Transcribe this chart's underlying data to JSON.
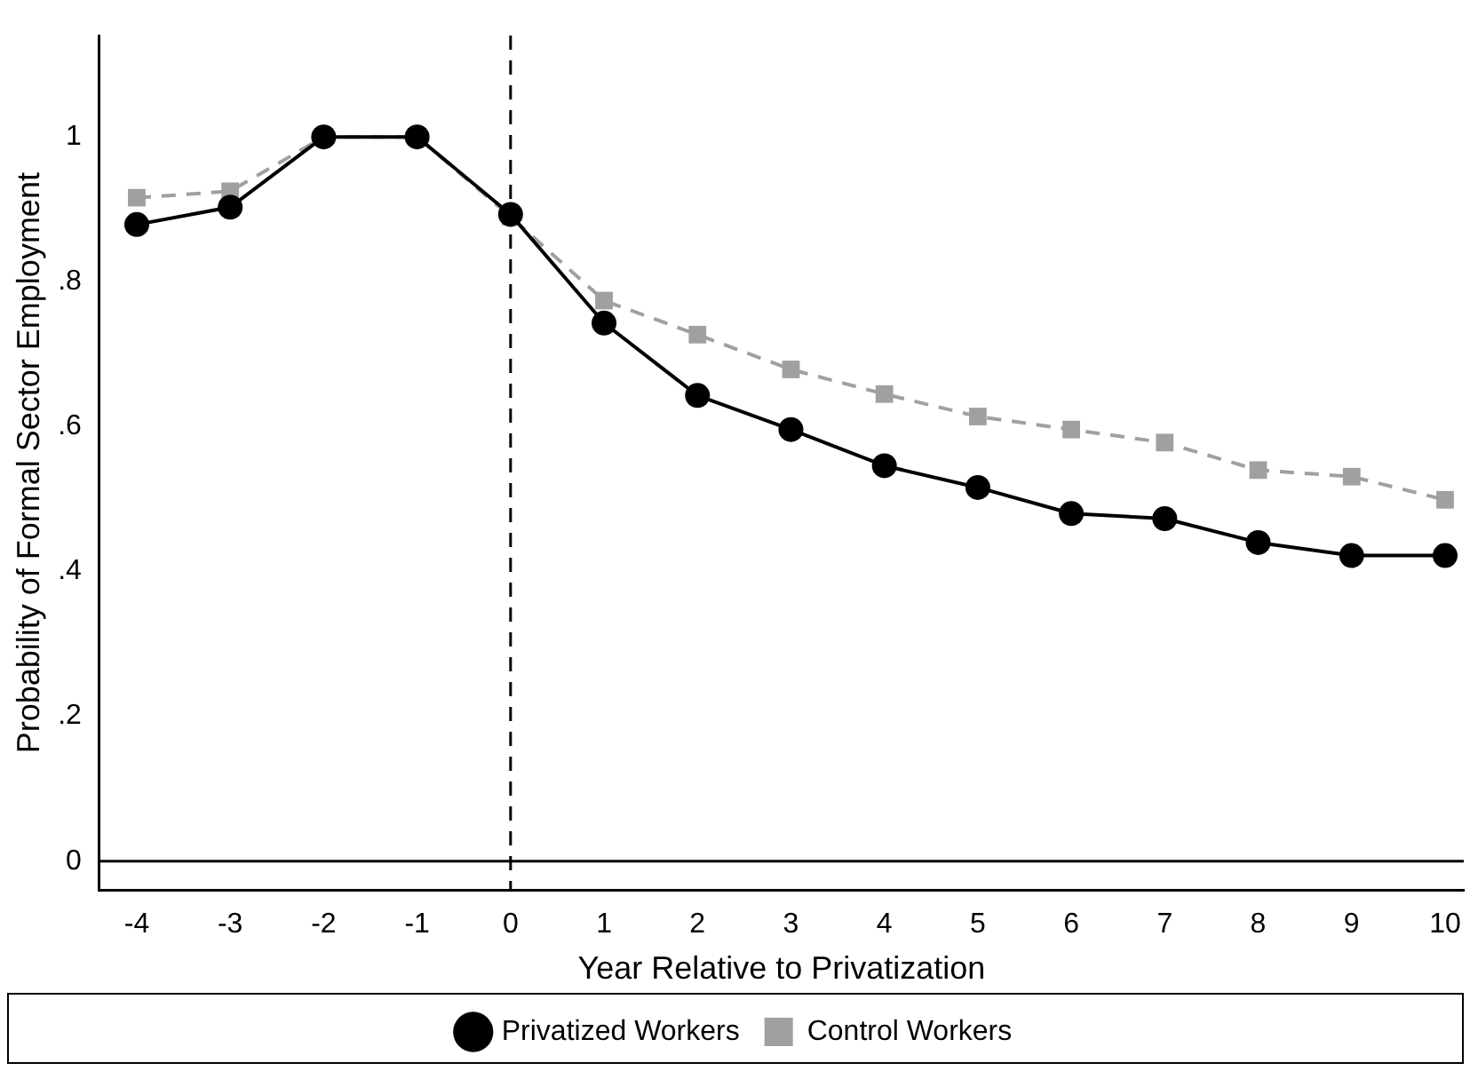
{
  "chart_data": {
    "type": "line",
    "xlabel": "Year Relative to Privatization",
    "ylabel": "Probability of Formal Sector Employment",
    "x": [
      -4,
      -3,
      -2,
      -1,
      0,
      1,
      2,
      3,
      4,
      5,
      6,
      7,
      8,
      9,
      10
    ],
    "series": [
      {
        "name": "Privatized Workers",
        "color": "#000000",
        "marker": "circle",
        "line_style": "solid",
        "values": [
          0.879,
          0.903,
          1,
          1,
          0.893,
          0.743,
          0.643,
          0.596,
          0.546,
          0.516,
          0.48,
          0.473,
          0.44,
          0.422,
          0.422
        ]
      },
      {
        "name": "Control Workers",
        "color": "#a0a0a0",
        "marker": "square",
        "line_style": "dashed",
        "values": [
          0.916,
          0.925,
          1,
          1,
          0.89,
          0.774,
          0.727,
          0.679,
          0.645,
          0.614,
          0.596,
          0.578,
          0.54,
          0.531,
          0.499
        ]
      }
    ],
    "xlim": [
      -4.4,
      10.2
    ],
    "xticks": [
      -4,
      -3,
      -2,
      -1,
      0,
      1,
      2,
      3,
      4,
      5,
      6,
      7,
      8,
      9,
      10
    ],
    "ylim": [
      -0.04,
      1.14
    ],
    "yticks": [
      {
        "value": 0,
        "label": "0"
      },
      {
        "value": 0.2,
        "label": ".2"
      },
      {
        "value": 0.4,
        "label": ".4"
      },
      {
        "value": 0.6,
        "label": ".6"
      },
      {
        "value": 0.8,
        "label": ".8"
      },
      {
        "value": 1,
        "label": "1"
      }
    ],
    "ref_lines": [
      {
        "axis": "x",
        "value": 0,
        "line_style": "dashed",
        "color": "#000000"
      },
      {
        "axis": "y",
        "value": 0,
        "line_style": "solid",
        "color": "#000000"
      }
    ],
    "grid": false,
    "legend": "bottom"
  }
}
